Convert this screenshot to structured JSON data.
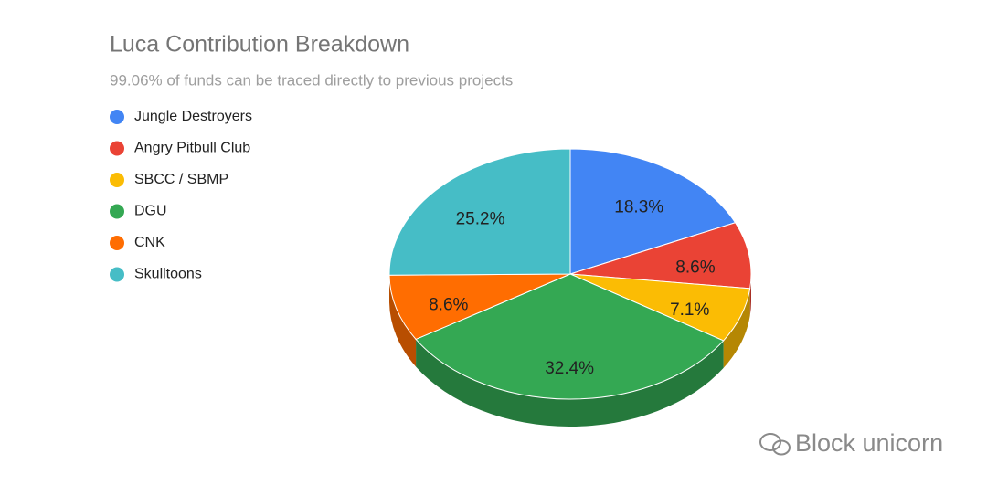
{
  "chart_data": {
    "type": "pie",
    "title": "Luca Contribution Breakdown",
    "subtitle": "99.06% of funds can be traced directly to previous projects",
    "categories": [
      "Jungle Destroyers",
      "Angry Pitbull Club",
      "SBCC / SBMP",
      "DGU",
      "CNK",
      "Skulltoons"
    ],
    "values": [
      18.3,
      8.6,
      7.1,
      32.4,
      8.6,
      25.2
    ],
    "value_labels": [
      "18.3%",
      "8.6%",
      "7.1%",
      "32.4%",
      "8.6%",
      "25.2%"
    ],
    "colors": [
      "#4285f4",
      "#ea4335",
      "#fbbc04",
      "#34a853",
      "#ff6d01",
      "#46bdc6"
    ],
    "legend": "left"
  },
  "watermark": "Block unicorn"
}
